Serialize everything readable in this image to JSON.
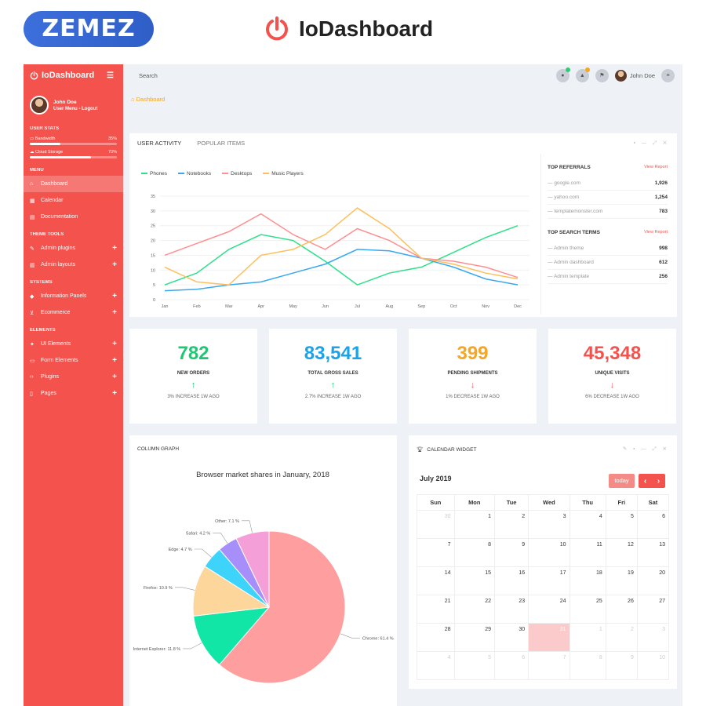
{
  "banner": {
    "vendor": "ZEMEZ",
    "product": "IoDashboard"
  },
  "sidebar": {
    "brand": "IoDashboard",
    "user": {
      "name": "John Doe",
      "menu": "User Menu - Logout"
    },
    "stats_title": "USER STATS",
    "stats": [
      {
        "label": "Bandwidth",
        "value": "35%",
        "pct": 35
      },
      {
        "label": "Cloud Storage",
        "value": "70%",
        "pct": 70
      }
    ],
    "menu_title": "MENU",
    "menu": [
      "Dashboard",
      "Calendar",
      "Documentation"
    ],
    "theme_title": "THEME TOOLS",
    "theme": [
      "Admin plugins",
      "Admin layouts"
    ],
    "systems_title": "SYSTEMS",
    "systems": [
      "Information Panels",
      "Ecommerce"
    ],
    "elements_title": "ELEMENTS",
    "elements": [
      "UI Elements",
      "Form Elements",
      "Plugins",
      "Pages"
    ]
  },
  "topbar": {
    "search": "Search",
    "user": "John Doe",
    "badge_colors": [
      "#2ecc71",
      "#f5a623"
    ]
  },
  "breadcrumb": "Dashboard",
  "activity": {
    "tabs": [
      "USER ACTIVITY",
      "POPULAR ITEMS"
    ],
    "legend": [
      {
        "name": "Phones",
        "color": "#2ee08a"
      },
      {
        "name": "Notebooks",
        "color": "#3aa8ef"
      },
      {
        "name": "Desktops",
        "color": "#ff8f91"
      },
      {
        "name": "Music Players",
        "color": "#fdbf5b"
      }
    ]
  },
  "referrals": {
    "title": "TOP REFERRALS",
    "action": "View Report",
    "rows": [
      {
        "name": "google.com",
        "value": "1,926"
      },
      {
        "name": "yahoo.com",
        "value": "1,254"
      },
      {
        "name": "templatemonster.com",
        "value": "783"
      }
    ]
  },
  "search_terms": {
    "title": "TOP SEARCH TERMS",
    "action": "View Report",
    "rows": [
      {
        "name": "Admin theme",
        "value": "998"
      },
      {
        "name": "Admin dashboard",
        "value": "612"
      },
      {
        "name": "Admin template",
        "value": "256"
      }
    ]
  },
  "stat_cards": [
    {
      "value": "782",
      "label": "NEW ORDERS",
      "change": "3% INCREASE 1W AGO",
      "arrow": "↑",
      "color": "#1ec772"
    },
    {
      "value": "83,541",
      "label": "TOTAL GROSS SALES",
      "change": "2.7% INCREASE 1W AGO",
      "arrow": "↑",
      "color": "#1aa3e8"
    },
    {
      "value": "399",
      "label": "PENDING SHIPMENTS",
      "change": "1% DECREASE 1W AGO",
      "arrow": "↓",
      "color": "#f5a623"
    },
    {
      "value": "45,348",
      "label": "UNIQUE VISITS",
      "change": "6% DECREASE 1W AGO",
      "arrow": "↓",
      "color": "#f4524d"
    }
  ],
  "column_graph": {
    "title": "COLUMN GRAPH"
  },
  "calendar": {
    "title": "CALENDAR WIDGET",
    "month": "July 2019",
    "today_label": "today",
    "weekdays": [
      "Sun",
      "Mon",
      "Tue",
      "Wed",
      "Thu",
      "Fri",
      "Sat"
    ],
    "weeks": [
      [
        "30",
        "1",
        "2",
        "3",
        "4",
        "5",
        "6"
      ],
      [
        "7",
        "8",
        "9",
        "10",
        "11",
        "12",
        "13"
      ],
      [
        "14",
        "15",
        "16",
        "17",
        "18",
        "19",
        "20"
      ],
      [
        "21",
        "22",
        "23",
        "24",
        "25",
        "26",
        "27"
      ],
      [
        "28",
        "29",
        "30",
        "31",
        "1",
        "2",
        "3"
      ],
      [
        "4",
        "5",
        "6",
        "7",
        "8",
        "9",
        "10"
      ]
    ],
    "today": "31"
  },
  "chart_data": [
    {
      "type": "line",
      "title": "",
      "x": [
        "Jan",
        "Feb",
        "Mar",
        "Apr",
        "May",
        "Jun",
        "Jul",
        "Aug",
        "Sep",
        "Oct",
        "Nov",
        "Dec"
      ],
      "ylim": [
        0,
        35
      ],
      "yticks": [
        0,
        5,
        10,
        15,
        20,
        25,
        30,
        35
      ],
      "series": [
        {
          "name": "Phones",
          "color": "#2ee08a",
          "values": [
            5,
            9,
            17,
            22,
            20,
            13,
            5,
            9,
            11,
            16,
            21,
            25
          ]
        },
        {
          "name": "Notebooks",
          "color": "#3aa8ef",
          "values": [
            3,
            3.5,
            5,
            6,
            9,
            12,
            17,
            16.5,
            14,
            11,
            7,
            5
          ]
        },
        {
          "name": "Desktops",
          "color": "#ff8f91",
          "values": [
            15,
            19,
            23,
            29,
            22,
            17,
            24,
            20,
            14,
            13,
            11,
            7.5
          ]
        },
        {
          "name": "Music Players",
          "color": "#fdbf5b",
          "values": [
            11,
            6,
            5,
            15,
            17,
            22,
            31,
            24,
            14,
            12,
            9,
            7
          ]
        }
      ],
      "grid": true,
      "legend": "top-left"
    },
    {
      "type": "pie",
      "title": "Browser market shares in January, 2018",
      "slices": [
        {
          "label": "Chrome: 61.4 %",
          "value": 61.4,
          "color": "#ff9e9e"
        },
        {
          "label": "Internet Explorer: 11.8 %",
          "value": 11.8,
          "color": "#12e6a6"
        },
        {
          "label": "Firefox: 10.9 %",
          "value": 10.9,
          "color": "#fdd69b"
        },
        {
          "label": "Edge: 4.7 %",
          "value": 4.7,
          "color": "#3dd3fb"
        },
        {
          "label": "Safari: 4.2 %",
          "value": 4.2,
          "color": "#a78ffb"
        },
        {
          "label": "Other: 7.1 %",
          "value": 7.1,
          "color": "#f49fd8"
        }
      ]
    }
  ]
}
